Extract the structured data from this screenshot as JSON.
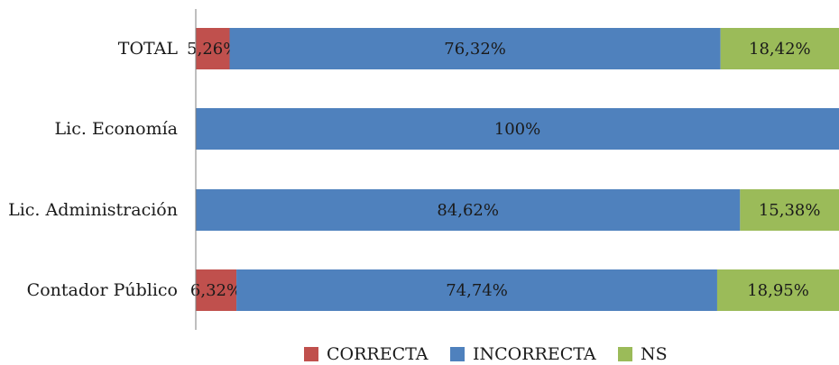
{
  "chart_data": {
    "type": "bar",
    "orientation": "horizontal",
    "stacked": true,
    "percent_stacked": true,
    "title": "",
    "categories": [
      "TOTAL",
      "Lic. Economía",
      "Lic. Administración",
      "Contador Público"
    ],
    "series": [
      {
        "name": "CORRECTA",
        "color": "#c0504d",
        "values": [
          5.26,
          0,
          0,
          6.32
        ],
        "labels": [
          "5,26%",
          "",
          "",
          "6,32%"
        ]
      },
      {
        "name": "INCORRECTA",
        "color": "#4f81bd",
        "values": [
          76.32,
          100,
          84.62,
          74.74
        ],
        "labels": [
          "76,32%",
          "100%",
          "84,62%",
          "74,74%"
        ]
      },
      {
        "name": "NS",
        "color": "#9bbb59",
        "values": [
          18.42,
          0,
          15.38,
          18.95
        ],
        "labels": [
          "18,42%",
          "",
          "15,38%",
          "18,95%"
        ]
      }
    ],
    "xlim": [
      0,
      100
    ],
    "grid": false,
    "legend_position": "bottom"
  }
}
